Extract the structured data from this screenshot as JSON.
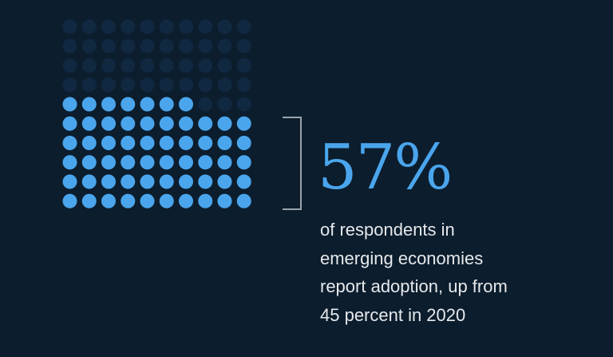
{
  "chart_data": {
    "type": "waffle",
    "total": 100,
    "filled": 57,
    "rows": 10,
    "columns": 10,
    "fill_order": "bottom-up, left-to-right",
    "colors": {
      "filled": "#4aa5ec",
      "empty": "#112841",
      "background": "#0c1d2d"
    }
  },
  "headline": "57%",
  "caption_lines": [
    "of respondents in",
    "emerging economies",
    "report adoption, up from",
    "45 percent in 2020"
  ]
}
